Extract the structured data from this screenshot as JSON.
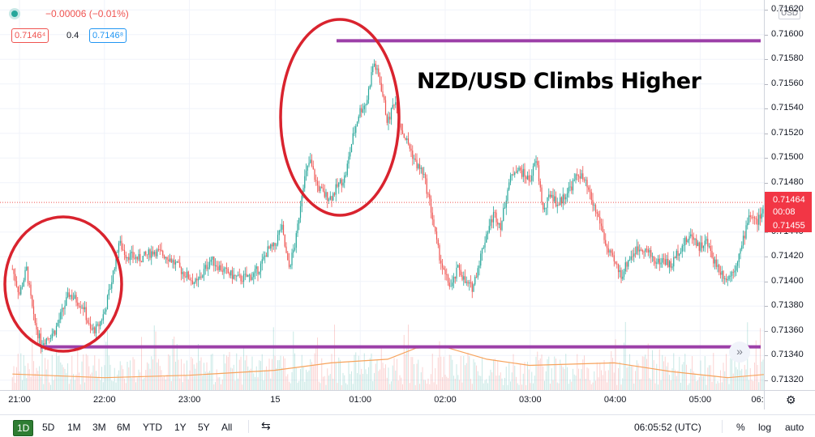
{
  "legend": {
    "change": "−0.00006 (−0.01%)",
    "bid": "0.7146⁴",
    "spread": "0.4",
    "ask": "0.7146⁸"
  },
  "annotation": {
    "headline": "NZD/USD Climbs Higher",
    "resistance_level": 0.71595,
    "support_level": 0.71347,
    "circle_color": "#d9232e",
    "line_color": "#9c3fa8"
  },
  "price_scale": {
    "currency": "USD",
    "last_price": "0.71464",
    "countdown": "00:08",
    "bid_price": "0.71455"
  },
  "time_scale": {
    "settings_icon": "gear-icon"
  },
  "bottom_bar": {
    "periods": [
      "1D",
      "5D",
      "1M",
      "3M",
      "6M",
      "YTD",
      "1Y",
      "5Y",
      "All"
    ],
    "active_period": "1D",
    "compare_icon": "calendar-range-icon",
    "clock": "06:05:52 (UTC)",
    "percent": "%",
    "log": "log",
    "auto": "auto",
    "scroll_icon": "scroll-right-icon"
  },
  "chart_data": {
    "type": "candlestick",
    "symbol": "NZD/USD",
    "interval": "1 minute",
    "x_ticks": [
      "21:00",
      "22:00",
      "23:00",
      "15",
      "01:00",
      "02:00",
      "03:00",
      "04:00",
      "05:00",
      "06:"
    ],
    "y_ticks": [
      0.7132,
      0.7134,
      0.7136,
      0.7138,
      0.714,
      0.7142,
      0.7144,
      0.7146,
      0.7148,
      0.715,
      0.7152,
      0.7154,
      0.7156,
      0.7158,
      0.716,
      0.7162
    ],
    "ylim": [
      0.71312,
      0.71628
    ],
    "colors": {
      "up": "#26a69a",
      "down": "#ef5350",
      "ma": "#f7a35c"
    },
    "price_path": [
      [
        "20:55",
        0.7141
      ],
      [
        "21:00",
        0.7139
      ],
      [
        "21:05",
        0.7141
      ],
      [
        "21:10",
        0.7137
      ],
      [
        "21:15",
        0.7135
      ],
      [
        "21:25",
        0.7136
      ],
      [
        "21:35",
        0.7139
      ],
      [
        "21:45",
        0.7138
      ],
      [
        "21:50",
        0.7136
      ],
      [
        "21:55",
        0.71362
      ],
      [
        "22:00",
        0.71375
      ],
      [
        "22:05",
        0.714
      ],
      [
        "22:10",
        0.71432
      ],
      [
        "22:15",
        0.71422
      ],
      [
        "22:25",
        0.71418
      ],
      [
        "22:35",
        0.71425
      ],
      [
        "22:45",
        0.7142
      ],
      [
        "22:55",
        0.71408
      ],
      [
        "23:05",
        0.71398
      ],
      [
        "23:15",
        0.71418
      ],
      [
        "23:25",
        0.71408
      ],
      [
        "23:35",
        0.71402
      ],
      [
        "23:45",
        0.71405
      ],
      [
        "23:50",
        0.71412
      ],
      [
        "23:55",
        0.71425
      ],
      [
        "24:00",
        0.71428
      ],
      [
        "24:05",
        0.71445
      ],
      [
        "24:10",
        0.7141
      ],
      [
        "24:15",
        0.71432
      ],
      [
        "24:20",
        0.71478
      ],
      [
        "24:25",
        0.71498
      ],
      [
        "24:30",
        0.71478
      ],
      [
        "24:35",
        0.7147
      ],
      [
        "24:40",
        0.71468
      ],
      [
        "24:45",
        0.71478
      ],
      [
        "24:50",
        0.71485
      ],
      [
        "24:55",
        0.71515
      ],
      [
        "25:00",
        0.71538
      ],
      [
        "25:05",
        0.71545
      ],
      [
        "25:10",
        0.71578
      ],
      [
        "25:15",
        0.7156
      ],
      [
        "25:20",
        0.71528
      ],
      [
        "25:25",
        0.71548
      ],
      [
        "25:30",
        0.71522
      ],
      [
        "25:35",
        0.7151
      ],
      [
        "25:40",
        0.71495
      ],
      [
        "25:45",
        0.71488
      ],
      [
        "25:50",
        0.71462
      ],
      [
        "25:55",
        0.71428
      ],
      [
        "26:00",
        0.71405
      ],
      [
        "26:05",
        0.71395
      ],
      [
        "26:10",
        0.71412
      ],
      [
        "26:15",
        0.71398
      ],
      [
        "26:20",
        0.71395
      ],
      [
        "26:25",
        0.71418
      ],
      [
        "26:30",
        0.7144
      ],
      [
        "26:35",
        0.71455
      ],
      [
        "26:40",
        0.71445
      ],
      [
        "26:45",
        0.71478
      ],
      [
        "26:50",
        0.71492
      ],
      [
        "26:55",
        0.71488
      ],
      [
        "27:00",
        0.71482
      ],
      [
        "27:05",
        0.71498
      ],
      [
        "27:10",
        0.71455
      ],
      [
        "27:15",
        0.71472
      ],
      [
        "27:20",
        0.71462
      ],
      [
        "27:25",
        0.7147
      ],
      [
        "27:30",
        0.71478
      ],
      [
        "27:35",
        0.71488
      ],
      [
        "27:40",
        0.71478
      ],
      [
        "27:45",
        0.71462
      ],
      [
        "27:50",
        0.71448
      ],
      [
        "27:55",
        0.71425
      ],
      [
        "28:00",
        0.71415
      ],
      [
        "28:05",
        0.71405
      ],
      [
        "28:10",
        0.71418
      ],
      [
        "28:15",
        0.71425
      ],
      [
        "28:20",
        0.71428
      ],
      [
        "28:25",
        0.71422
      ],
      [
        "28:30",
        0.71415
      ],
      [
        "28:35",
        0.71418
      ],
      [
        "28:40",
        0.71412
      ],
      [
        "28:45",
        0.71425
      ],
      [
        "28:50",
        0.71432
      ],
      [
        "28:55",
        0.71438
      ],
      [
        "29:00",
        0.71428
      ],
      [
        "29:05",
        0.71432
      ],
      [
        "29:10",
        0.71418
      ],
      [
        "29:15",
        0.71408
      ],
      [
        "29:20",
        0.71402
      ],
      [
        "29:25",
        0.71412
      ],
      [
        "29:30",
        0.71428
      ],
      [
        "29:35",
        0.71455
      ],
      [
        "29:40",
        0.71448
      ],
      [
        "29:45",
        0.71455
      ],
      [
        "29:50",
        0.71448
      ],
      [
        "29:55",
        0.71438
      ],
      [
        "30:00",
        0.71442
      ],
      [
        "30:05",
        0.71452
      ],
      [
        "30:10",
        0.71448
      ],
      [
        "30:15",
        0.71458
      ],
      [
        "30:20",
        0.71448
      ],
      [
        "30:25",
        0.71498
      ],
      [
        "30:30",
        0.71482
      ],
      [
        "30:35",
        0.71464
      ]
    ],
    "ma_path": [
      [
        "20:55",
        0.71325
      ],
      [
        "22:00",
        0.71322
      ],
      [
        "23:00",
        0.71324
      ],
      [
        "24:00",
        0.71328
      ],
      [
        "24:40",
        0.71334
      ],
      [
        "25:20",
        0.71337
      ],
      [
        "25:40",
        0.71346
      ],
      [
        "26:00",
        0.71347
      ],
      [
        "26:30",
        0.71337
      ],
      [
        "27:00",
        0.71332
      ],
      [
        "28:00",
        0.71334
      ],
      [
        "28:40",
        0.71327
      ],
      [
        "29:20",
        0.71322
      ],
      [
        "30:00",
        0.71326
      ],
      [
        "30:35",
        0.71331
      ]
    ]
  }
}
